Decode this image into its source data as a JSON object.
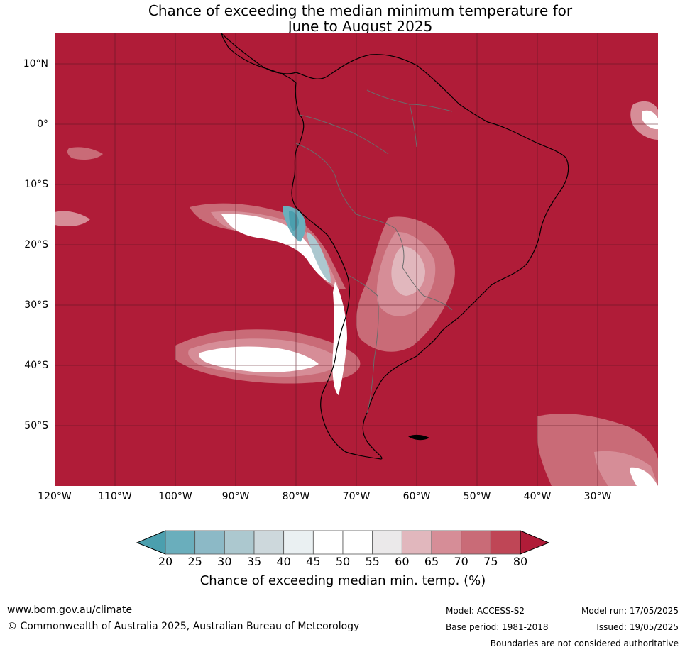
{
  "title": {
    "line1": "Chance of exceeding the median minimum temperature for",
    "line2": "June to August 2025"
  },
  "map": {
    "lat_labels": [
      "10°N",
      "0°",
      "10°S",
      "20°S",
      "30°S",
      "40°S",
      "50°S"
    ],
    "lon_labels": [
      "120°W",
      "110°W",
      "100°W",
      "90°W",
      "80°W",
      "70°W",
      "60°W",
      "50°W",
      "40°W",
      "30°W"
    ],
    "ocean_color": "#b01c38"
  },
  "colorbar": {
    "ticks": [
      "20",
      "25",
      "30",
      "35",
      "40",
      "45",
      "50",
      "55",
      "60",
      "65",
      "70",
      "75",
      "80"
    ],
    "colors": [
      "#4b9fae",
      "#6aaebc",
      "#8cb9c6",
      "#acc8cf",
      "#cdd8dc",
      "#eaf0f2",
      "#ffffff",
      "#ffffff",
      "#ebe9ea",
      "#e1b7bd",
      "#d68d97",
      "#c96b77",
      "#bf4656",
      "#b01c38"
    ],
    "label": "Chance of exceeding median min. temp. (%)"
  },
  "footer": {
    "url": "www.bom.gov.au/climate",
    "copyright": "© Commonwealth of Australia 2025, Australian Bureau of Meteorology",
    "model": "Model: ACCESS-S2",
    "base_period": "Base period: 1981-2018",
    "model_run": "Model run: 17/05/2025",
    "issued": "Issued: 19/05/2025",
    "disclaimer": "Boundaries are not considered authoritative"
  }
}
